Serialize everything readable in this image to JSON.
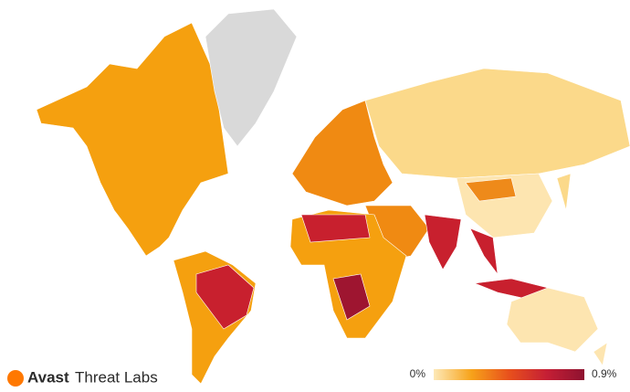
{
  "brand": {
    "name": "Avast",
    "product": "Threat Labs"
  },
  "legend": {
    "min": {
      "value": 0,
      "label": "0%"
    },
    "max": {
      "value": 0.9,
      "label": "0.9%"
    },
    "colors": [
      "#fde9b8",
      "#f7a31a",
      "#e8501c",
      "#c51f35",
      "#8e1230"
    ]
  }
}
